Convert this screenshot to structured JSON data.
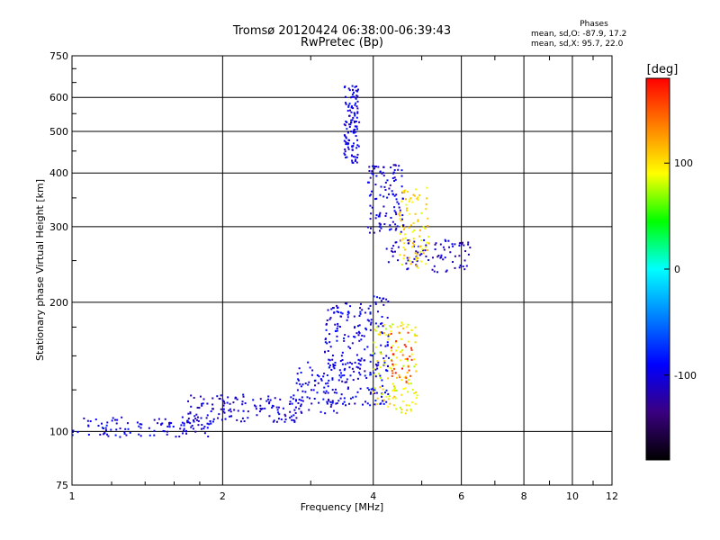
{
  "title_line1": "Tromsø 20120424 06:38:00-06:39:43",
  "title_line2": "RwPretec (Bp)",
  "phases": {
    "heading": "Phases",
    "line_o": "mean, sd,O: -87.9, 17.2",
    "line_x": "mean, sd,X:  95.7, 22.0"
  },
  "colorbar": {
    "unit": "[deg]",
    "ticks": [
      100,
      0,
      -100
    ],
    "range": [
      -180,
      180
    ],
    "colors": [
      "#000000",
      "#3a0080",
      "#0000ff",
      "#0080ff",
      "#00ffff",
      "#00ff00",
      "#ffff00",
      "#ff8000",
      "#ff0000"
    ]
  },
  "chart_data": {
    "type": "scatter",
    "title": "Tromsø 20120424 06:38:00-06:39:43",
    "subtitle": "RwPretec (Bp)",
    "xlabel": "Frequency [MHz]",
    "ylabel": "Stationary phase Virtual Height [km]",
    "xscale": "log",
    "yscale": "log",
    "xlim": [
      1,
      12
    ],
    "ylim": [
      75,
      750
    ],
    "xticks": [
      1,
      2,
      4,
      6,
      8,
      10,
      12
    ],
    "yticks": [
      75,
      100,
      200,
      300,
      400,
      500,
      600,
      750
    ],
    "grid": true,
    "colored_by": "phase (deg)",
    "series": [
      {
        "clusters": [
          {
            "f0": 1.0,
            "f1": 1.9,
            "h0": 97,
            "h1": 108,
            "phase": -100,
            "n": 110
          },
          {
            "f0": 1.7,
            "f1": 2.9,
            "h0": 105,
            "h1": 122,
            "phase": -105,
            "n": 140
          },
          {
            "f0": 2.8,
            "f1": 3.5,
            "h0": 110,
            "h1": 145,
            "phase": -100,
            "n": 80
          },
          {
            "f0": 3.2,
            "f1": 3.9,
            "h0": 115,
            "h1": 200,
            "phase": -100,
            "n": 160
          },
          {
            "f0": 3.9,
            "f1": 4.3,
            "h0": 115,
            "h1": 210,
            "phase": -95,
            "n": 90
          },
          {
            "f0": 3.5,
            "f1": 3.75,
            "h0": 420,
            "h1": 640,
            "phase": -100,
            "n": 120
          },
          {
            "f0": 3.9,
            "f1": 4.6,
            "h0": 290,
            "h1": 420,
            "phase": -105,
            "n": 110
          },
          {
            "f0": 4.2,
            "f1": 6.3,
            "h0": 235,
            "h1": 280,
            "phase": -110,
            "n": 90
          },
          {
            "f0": 4.0,
            "f1": 4.9,
            "h0": 110,
            "h1": 180,
            "phase": 95,
            "n": 130
          },
          {
            "f0": 4.5,
            "f1": 5.2,
            "h0": 240,
            "h1": 370,
            "phase": 100,
            "n": 90
          },
          {
            "f0": 4.3,
            "f1": 4.8,
            "h0": 130,
            "h1": 170,
            "phase": 160,
            "n": 30
          }
        ]
      }
    ]
  }
}
